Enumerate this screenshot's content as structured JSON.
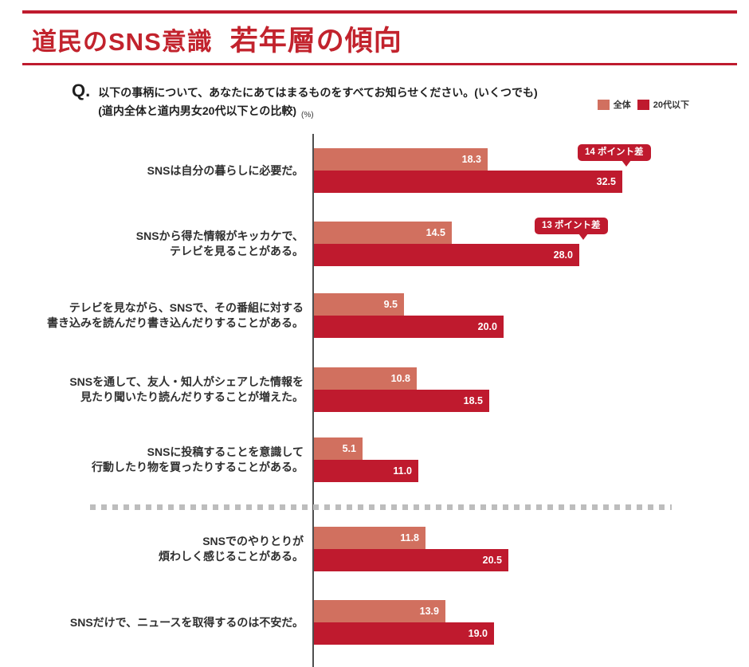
{
  "header": {
    "title_part1": "道民のSNS意識",
    "title_part2": "若年層の傾向"
  },
  "question": {
    "prefix": "Q.",
    "line1": "以下の事柄について、あなたにあてはまるものをすべてお知らせください。(いくつでも)",
    "line2": "(道内全体と道内男女20代以下との比較)"
  },
  "axis_unit": "(%)",
  "legend": {
    "items": [
      {
        "label": "全体",
        "color": "#d1705f"
      },
      {
        "label": "20代以下",
        "color": "#bf1a2e"
      }
    ]
  },
  "chart_data": {
    "type": "bar",
    "orientation": "horizontal",
    "unit": "%",
    "xlim": [
      0,
      35
    ],
    "grid": false,
    "legend_position": "top-right",
    "series_names": [
      "全体",
      "20代以下"
    ],
    "colors": {
      "全体": "#d1705f",
      "20代以下": "#bf1a2e"
    },
    "rows": [
      {
        "label": "SNSは自分の暮らしに必要だ。",
        "overall": 18.3,
        "young": 32.5,
        "badge": "14 ポイント差"
      },
      {
        "label": "SNSから得た情報がキッカケで、\nテレビを見ることがある。",
        "overall": 14.5,
        "young": 28.0,
        "badge": "13 ポイント差"
      },
      {
        "label": "テレビを見ながら、SNSで、その番組に対する\n書き込みを読んだり書き込んだりすることがある。",
        "overall": 9.5,
        "young": 20.0,
        "badge": null
      },
      {
        "label": "SNSを通して、友人・知人がシェアした情報を\n見たり聞いたり読んだりすることが増えた。",
        "overall": 10.8,
        "young": 18.5,
        "badge": null
      },
      {
        "label": "SNSに投稿することを意識して\n行動したり物を買ったりすることがある。",
        "overall": 5.1,
        "young": 11.0,
        "badge": null,
        "divider_after": true
      },
      {
        "label": "SNSでのやりとりが\n煩わしく感じることがある。",
        "overall": 11.8,
        "young": 20.5,
        "badge": null
      },
      {
        "label": "SNSだけで、ニュースを取得するのは不安だ。",
        "overall": 13.9,
        "young": 19.0,
        "badge": null
      }
    ]
  }
}
